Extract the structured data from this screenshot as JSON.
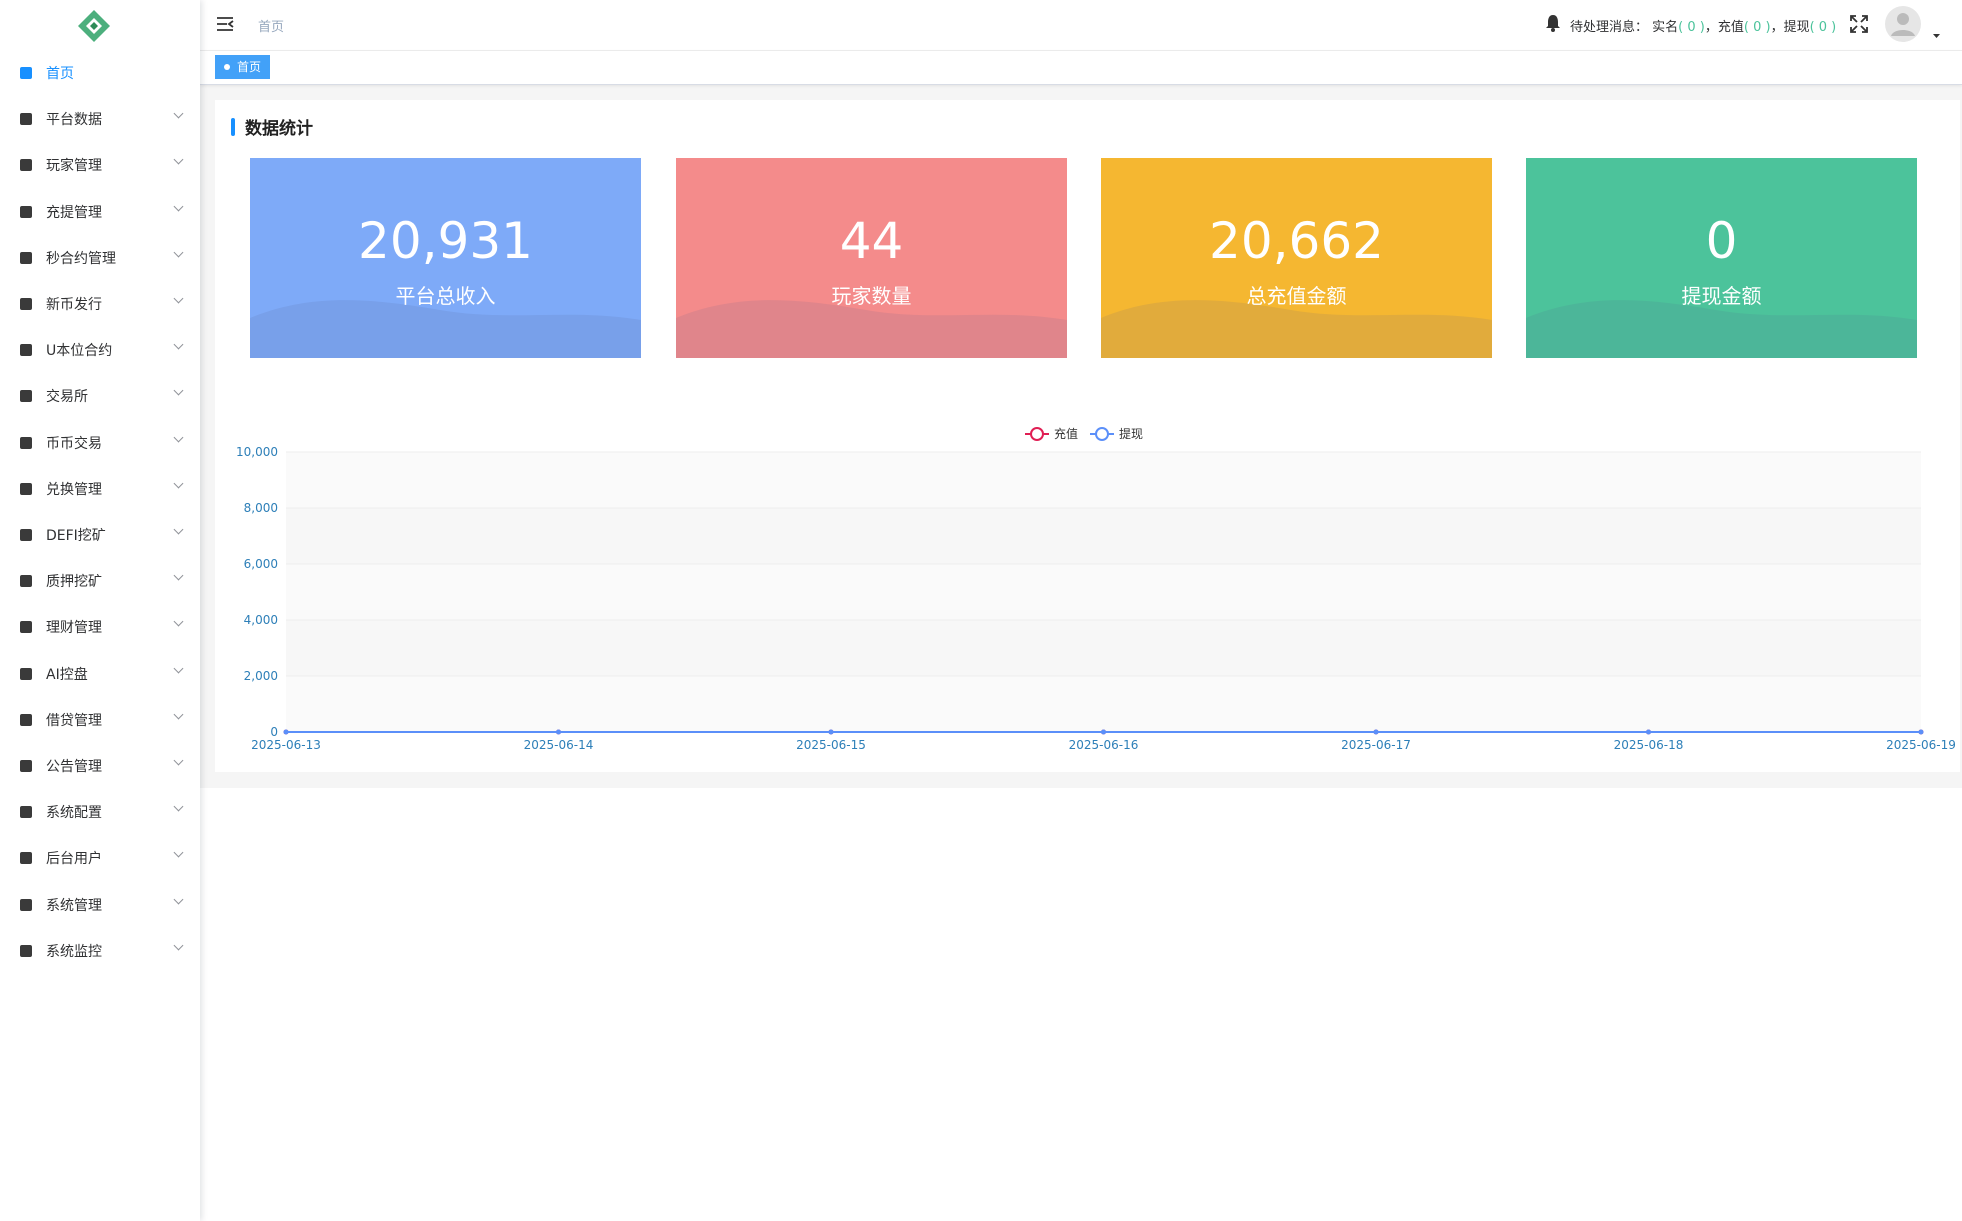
{
  "sidebar": {
    "menu": [
      "首页",
      "平台数据",
      "玩家管理",
      "充提管理",
      "秒合约管理",
      "新币发行",
      "U本位合约",
      "交易所",
      "币币交易",
      "兑换管理",
      "DEFI挖矿",
      "质押挖矿",
      "理财管理",
      "AI控盘",
      "借贷管理",
      "公告管理",
      "系统配置",
      "后台用户",
      "系统管理",
      "系统监控"
    ]
  },
  "header": {
    "breadcrumb": "首页",
    "notice": {
      "title": "待处理消息：",
      "items": [
        {
          "name": "实名",
          "count": "( 0 )"
        },
        {
          "name": "，充值",
          "count": "( 0 )"
        },
        {
          "name": "，提现",
          "count": "( 0 )"
        }
      ]
    }
  },
  "tags": [
    "首页"
  ],
  "section_title": "数据统计",
  "cards": [
    {
      "value": "20,931",
      "label": "平台总收入",
      "color": "#7eaaf8"
    },
    {
      "value": "44",
      "label": "玩家数量",
      "color": "#f48b8b"
    },
    {
      "value": "20,662",
      "label": "总充值金额",
      "color": "#f5b731"
    },
    {
      "value": "0",
      "label": "提现金额",
      "color": "#4cc39b"
    }
  ],
  "chart_data": {
    "type": "line",
    "x": [
      "2025-06-13",
      "2025-06-14",
      "2025-06-15",
      "2025-06-16",
      "2025-06-17",
      "2025-06-18",
      "2025-06-19"
    ],
    "series": [
      {
        "name": "充值",
        "color": "#e01f54",
        "values": [
          0,
          0,
          0,
          0,
          0,
          0,
          0
        ]
      },
      {
        "name": "提现",
        "color": "#5b8ff9",
        "values": [
          0,
          0,
          0,
          0,
          0,
          0,
          0
        ]
      }
    ],
    "ylim": [
      0,
      10000
    ],
    "yticks": [
      0,
      {
        "value": 2000,
        "label": "2,000"
      },
      {
        "value": 4000,
        "label": "4,000"
      },
      {
        "value": 6000,
        "label": "6,000"
      },
      {
        "value": 8000,
        "label": "8,000"
      },
      {
        "value": 10000,
        "label": "10,000"
      }
    ],
    "grid": true,
    "legend": "top"
  }
}
